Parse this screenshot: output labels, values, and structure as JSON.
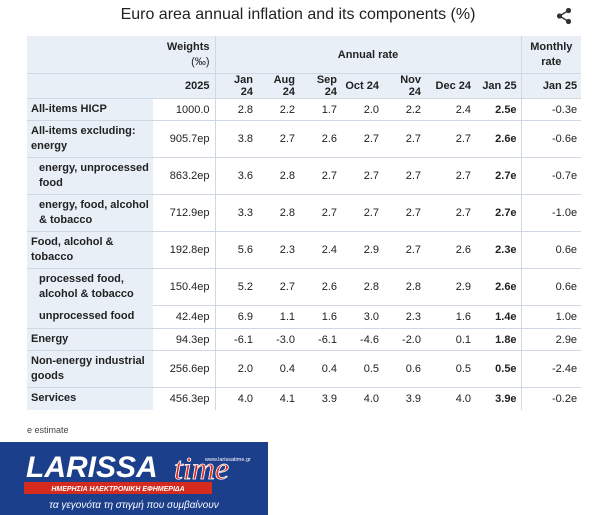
{
  "title": "Euro area annual inflation and its components (%)",
  "header": {
    "weights_label": "Weights",
    "weights_unit": "(‰)",
    "annual_rate_label": "Annual rate",
    "monthly_rate_label": "Monthly rate",
    "weights_year": "2025",
    "columns": [
      "Jan 24",
      "Aug 24",
      "Sep 24",
      "Oct 24",
      "Nov 24",
      "Dec 24",
      "Jan 25"
    ],
    "monthly_column": "Jan 25"
  },
  "rows": [
    {
      "label": "All-items HICP",
      "weight": "1000.0",
      "values": [
        "2.8",
        "2.2",
        "1.7",
        "2.0",
        "2.2",
        "2.4",
        "2.5e"
      ],
      "monthly": "-0.3e"
    },
    {
      "label": "All-items excluding: energy",
      "weight": "905.7ep",
      "values": [
        "3.8",
        "2.7",
        "2.6",
        "2.7",
        "2.7",
        "2.7",
        "2.6e"
      ],
      "monthly": "-0.6e"
    },
    {
      "label": "energy, unprocessed food",
      "weight": "863.2ep",
      "values": [
        "3.6",
        "2.8",
        "2.7",
        "2.7",
        "2.7",
        "2.7",
        "2.7e"
      ],
      "monthly": "-0.7e"
    },
    {
      "label": "energy, food, alcohol & tobacco",
      "weight": "712.9ep",
      "values": [
        "3.3",
        "2.8",
        "2.7",
        "2.7",
        "2.7",
        "2.7",
        "2.7e"
      ],
      "monthly": "-1.0e"
    },
    {
      "label": "Food, alcohol & tobacco",
      "weight": "192.8ep",
      "values": [
        "5.6",
        "2.3",
        "2.4",
        "2.9",
        "2.7",
        "2.6",
        "2.3e"
      ],
      "monthly": "0.6e"
    },
    {
      "label": "processed food, alcohol & tobacco",
      "weight": "150.4ep",
      "values": [
        "5.2",
        "2.7",
        "2.6",
        "2.8",
        "2.8",
        "2.9",
        "2.6e"
      ],
      "monthly": "0.6e"
    },
    {
      "label": "unprocessed food",
      "weight": "42.4ep",
      "values": [
        "6.9",
        "1.1",
        "1.6",
        "3.0",
        "2.3",
        "1.6",
        "1.4e"
      ],
      "monthly": "1.0e"
    },
    {
      "label": "Energy",
      "weight": "94.3ep",
      "values": [
        "-6.1",
        "-3.0",
        "-6.1",
        "-4.6",
        "-2.0",
        "0.1",
        "1.8e"
      ],
      "monthly": "2.9e"
    },
    {
      "label": "Non-energy industrial goods",
      "weight": "256.6ep",
      "values": [
        "2.0",
        "0.4",
        "0.4",
        "0.5",
        "0.6",
        "0.5",
        "0.5e"
      ],
      "monthly": "-2.4e"
    },
    {
      "label": "Services",
      "weight": "456.3ep",
      "values": [
        "4.0",
        "4.1",
        "3.9",
        "4.0",
        "3.9",
        "4.0",
        "3.9e"
      ],
      "monthly": "-0.2e"
    }
  ],
  "footnote": "e estimate",
  "logo": {
    "brand_left": "LARISSA",
    "brand_right": "time",
    "website": "www.larissatime.gr",
    "tagline_top": "ΗΜΕΡΗΣΙΑ ΗΛΕΚΤΡΟΝΙΚΗ ΕΦΗΜΕΡΙΔΑ",
    "tagline_bottom": "τα γεγονότα τη στιγμή που συμβαίνουν",
    "colors": {
      "dark_blue": "#1c3f8c",
      "red": "#d52b1e",
      "white": "#ffffff"
    }
  },
  "icons": {
    "share": "share-icon"
  }
}
